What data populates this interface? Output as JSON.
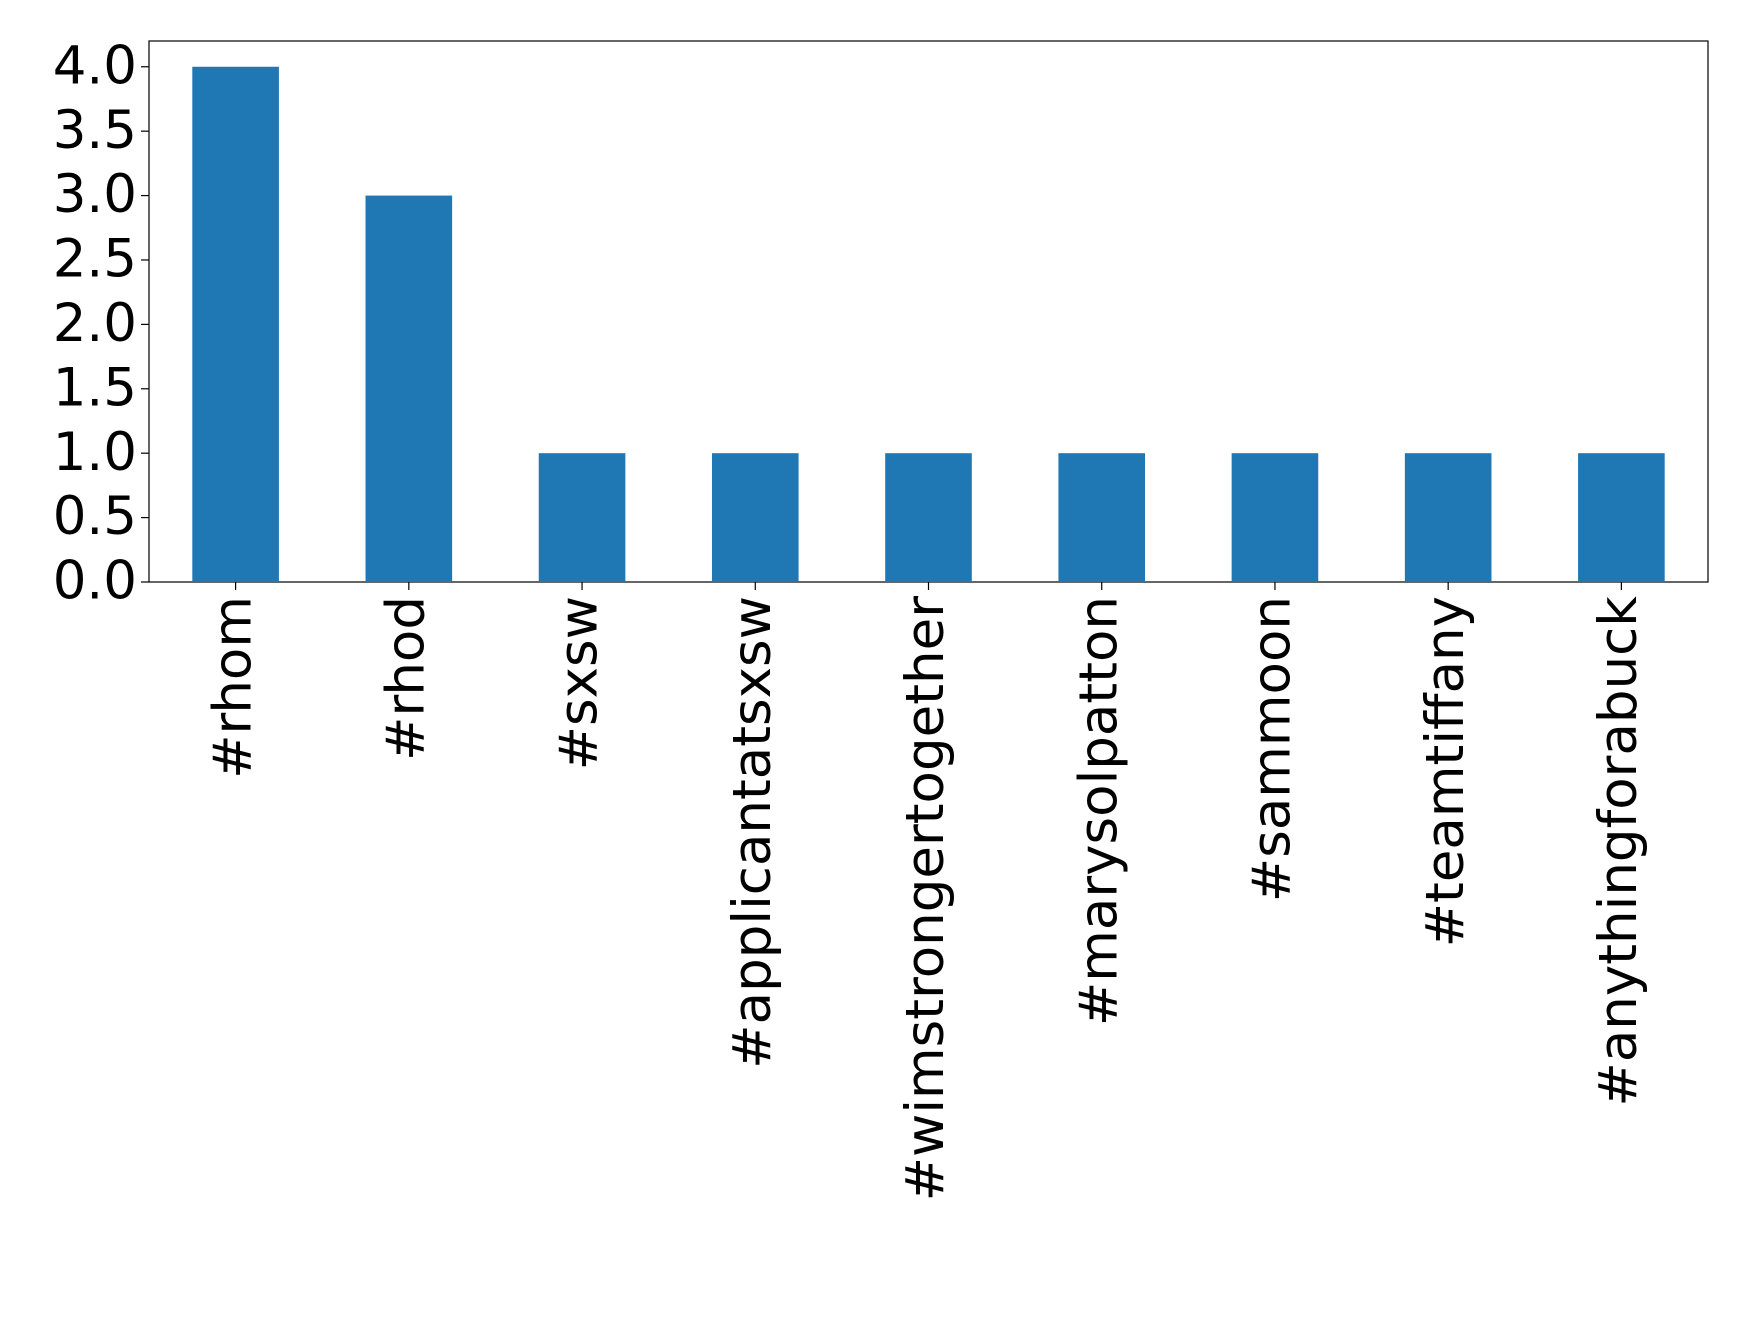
{
  "chart_data": {
    "type": "bar",
    "categories": [
      "#rhom",
      "#rhod",
      "#sxsw",
      "#applicantatsxsw",
      "#wimstrongertogether",
      "#marysolpatton",
      "#sammoon",
      "#teamtiffany",
      "#anythingforabuck"
    ],
    "values": [
      4,
      3,
      1,
      1,
      1,
      1,
      1,
      1,
      1
    ],
    "color": "#1f77b4",
    "ylim": [
      0,
      4.2
    ],
    "yticks": [
      {
        "value": 0,
        "label": "0.0"
      },
      0.5,
      {
        "value": 1,
        "label": "1.0"
      },
      1.5,
      {
        "value": 2,
        "label": "2.0"
      },
      2.5,
      {
        "value": 3,
        "label": "3.0"
      },
      3.5,
      {
        "value": 4,
        "label": "4.0"
      }
    ],
    "grid": false
  }
}
